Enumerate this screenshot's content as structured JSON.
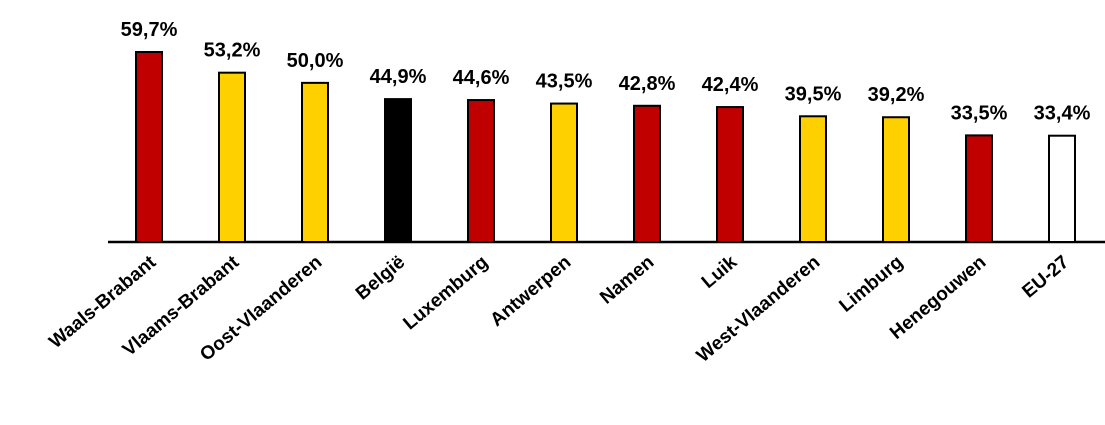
{
  "chart_data": {
    "type": "bar",
    "categories": [
      "Waals-Brabant",
      "Vlaams-Brabant",
      "Oost-Vlaanderen",
      "België",
      "Luxemburg",
      "Antwerpen",
      "Namen",
      "Luik",
      "West-Vlaanderen",
      "Limburg",
      "Henegouwen",
      "EU-27"
    ],
    "values": [
      59.7,
      53.2,
      50.0,
      44.9,
      44.6,
      43.5,
      42.8,
      42.4,
      39.5,
      39.2,
      33.5,
      33.4
    ],
    "value_labels": [
      "59,7%",
      "53,2%",
      "50,0%",
      "44,9%",
      "44,6%",
      "43,5%",
      "42,8%",
      "42,4%",
      "39,5%",
      "39,2%",
      "33,5%",
      "33,4%"
    ],
    "colors": [
      "#c00000",
      "#ffd000",
      "#ffd000",
      "#000000",
      "#c00000",
      "#ffd000",
      "#c00000",
      "#c00000",
      "#ffd000",
      "#ffd000",
      "#c00000",
      "#ffffff"
    ]
  }
}
